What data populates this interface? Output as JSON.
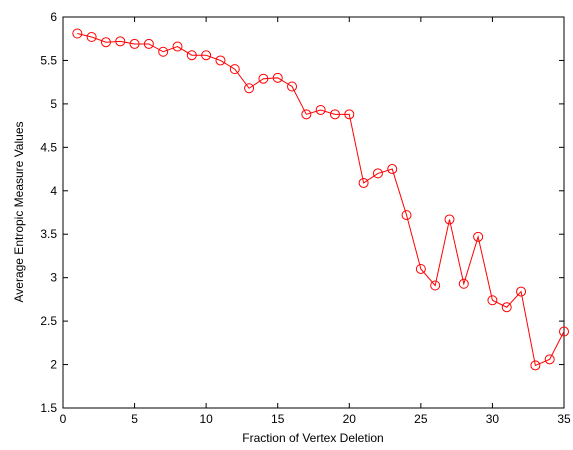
{
  "chart_data": {
    "type": "line",
    "title": "",
    "xlabel": "Fraction of Vertex Deletion",
    "ylabel": "Average Entropic Measure Values",
    "xlim": [
      0,
      35
    ],
    "ylim": [
      1.5,
      6
    ],
    "xticks": [
      0,
      5,
      10,
      15,
      20,
      25,
      30,
      35
    ],
    "yticks": [
      1.5,
      2,
      2.5,
      3,
      3.5,
      4,
      4.5,
      5,
      5.5,
      6
    ],
    "xtick_labels": [
      "0",
      "5",
      "10",
      "15",
      "20",
      "25",
      "30",
      "35"
    ],
    "ytick_labels": [
      "1.5",
      "2",
      "2.5",
      "3",
      "3.5",
      "4",
      "4.5",
      "5",
      "5.5",
      "6"
    ],
    "grid": false,
    "legend": "none",
    "series": [
      {
        "color": "#ff0000",
        "marker": "circle",
        "x": [
          1,
          2,
          3,
          4,
          5,
          6,
          7,
          8,
          9,
          10,
          11,
          12,
          13,
          14,
          15,
          16,
          17,
          18,
          19,
          20,
          21,
          22,
          23,
          24,
          25,
          26,
          27,
          28,
          29,
          30,
          31,
          32,
          33,
          34,
          35
        ],
        "y": [
          5.81,
          5.77,
          5.71,
          5.72,
          5.69,
          5.69,
          5.6,
          5.66,
          5.56,
          5.56,
          5.5,
          5.4,
          5.18,
          5.29,
          5.3,
          5.2,
          4.88,
          4.93,
          4.88,
          4.88,
          4.09,
          4.2,
          4.25,
          3.72,
          3.1,
          2.91,
          3.67,
          2.93,
          3.47,
          2.74,
          2.66,
          2.84,
          1.99,
          2.06,
          2.38
        ]
      }
    ]
  }
}
